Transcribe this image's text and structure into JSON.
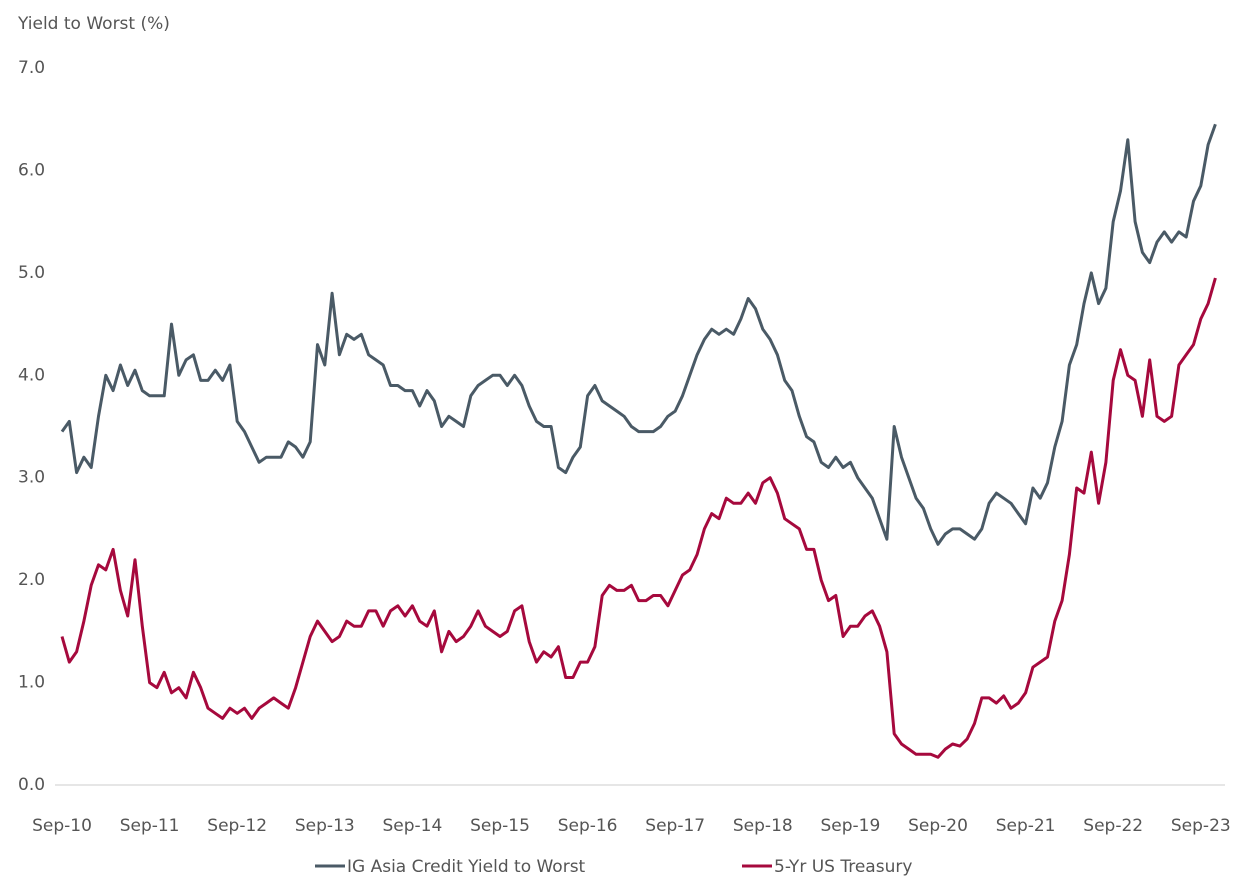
{
  "chart_data": {
    "type": "line",
    "y_label": "Yield to Worst (%)",
    "categories": [
      "Sep-10",
      null,
      null,
      null,
      null,
      null,
      null,
      null,
      null,
      null,
      null,
      null,
      "Sep-11",
      null,
      null,
      null,
      null,
      null,
      null,
      null,
      null,
      null,
      null,
      null,
      "Sep-12",
      null,
      null,
      null,
      null,
      null,
      null,
      null,
      null,
      null,
      null,
      null,
      "Sep-13",
      null,
      null,
      null,
      null,
      null,
      null,
      null,
      null,
      null,
      null,
      null,
      "Sep-14",
      null,
      null,
      null,
      null,
      null,
      null,
      null,
      null,
      null,
      null,
      null,
      "Sep-15",
      null,
      null,
      null,
      null,
      null,
      null,
      null,
      null,
      null,
      null,
      null,
      "Sep-16",
      null,
      null,
      null,
      null,
      null,
      null,
      null,
      null,
      null,
      null,
      null,
      "Sep-17",
      null,
      null,
      null,
      null,
      null,
      null,
      null,
      null,
      null,
      null,
      null,
      "Sep-18",
      null,
      null,
      null,
      null,
      null,
      null,
      null,
      null,
      null,
      null,
      null,
      "Sep-19",
      null,
      null,
      null,
      null,
      null,
      null,
      null,
      null,
      null,
      null,
      null,
      "Sep-20",
      null,
      null,
      null,
      null,
      null,
      null,
      null,
      null,
      null,
      null,
      null,
      "Sep-21",
      null,
      null,
      null,
      null,
      null,
      null,
      null,
      null,
      null,
      null,
      null,
      "Sep-22",
      null,
      null,
      null,
      null,
      null,
      null,
      null,
      null,
      null,
      null,
      null,
      "Sep-23",
      null,
      null
    ],
    "series": [
      {
        "name": "IG Asia Credit Yield to Worst",
        "color": "#4a5a66",
        "values": [
          3.45,
          3.55,
          3.05,
          3.2,
          3.1,
          3.6,
          4.0,
          3.85,
          4.1,
          3.9,
          4.05,
          3.85,
          3.8,
          3.8,
          3.8,
          4.5,
          4.0,
          4.15,
          4.2,
          3.95,
          3.95,
          4.05,
          3.95,
          4.1,
          3.55,
          3.45,
          3.3,
          3.15,
          3.2,
          3.2,
          3.2,
          3.35,
          3.3,
          3.2,
          3.35,
          4.3,
          4.1,
          4.8,
          4.2,
          4.4,
          4.35,
          4.4,
          4.2,
          4.15,
          4.1,
          3.9,
          3.9,
          3.85,
          3.85,
          3.7,
          3.85,
          3.75,
          3.5,
          3.6,
          3.55,
          3.5,
          3.8,
          3.9,
          3.95,
          4.0,
          4.0,
          3.9,
          4.0,
          3.9,
          3.7,
          3.55,
          3.5,
          3.5,
          3.1,
          3.05,
          3.2,
          3.3,
          3.8,
          3.9,
          3.75,
          3.7,
          3.65,
          3.6,
          3.5,
          3.45,
          3.45,
          3.45,
          3.5,
          3.6,
          3.65,
          3.8,
          4.0,
          4.2,
          4.35,
          4.45,
          4.4,
          4.45,
          4.4,
          4.55,
          4.75,
          4.65,
          4.45,
          4.35,
          4.2,
          3.95,
          3.85,
          3.6,
          3.4,
          3.35,
          3.15,
          3.1,
          3.2,
          3.1,
          3.15,
          3.0,
          2.9,
          2.8,
          2.6,
          2.4,
          3.5,
          3.2,
          3.0,
          2.8,
          2.7,
          2.5,
          2.35,
          2.45,
          2.5,
          2.5,
          2.45,
          2.4,
          2.5,
          2.75,
          2.85,
          2.8,
          2.75,
          2.65,
          2.55,
          2.9,
          2.8,
          2.95,
          3.3,
          3.55,
          4.1,
          4.3,
          4.7,
          5.0,
          4.7,
          4.85,
          5.5,
          5.8,
          6.3,
          5.5,
          5.2,
          5.1,
          5.3,
          5.4,
          5.3,
          5.4,
          5.35,
          5.7,
          5.85,
          6.25,
          6.45
        ]
      },
      {
        "name": "5-Yr US Treasury",
        "color": "#a6093d",
        "values": [
          1.45,
          1.2,
          1.3,
          1.6,
          1.95,
          2.15,
          2.1,
          2.3,
          1.9,
          1.65,
          2.2,
          1.55,
          1.0,
          0.95,
          1.1,
          0.9,
          0.95,
          0.85,
          1.1,
          0.95,
          0.75,
          0.7,
          0.65,
          0.75,
          0.7,
          0.75,
          0.65,
          0.75,
          0.8,
          0.85,
          0.8,
          0.75,
          0.95,
          1.2,
          1.45,
          1.6,
          1.5,
          1.4,
          1.45,
          1.6,
          1.55,
          1.55,
          1.7,
          1.7,
          1.55,
          1.7,
          1.75,
          1.65,
          1.75,
          1.6,
          1.55,
          1.7,
          1.3,
          1.5,
          1.4,
          1.45,
          1.55,
          1.7,
          1.55,
          1.5,
          1.45,
          1.5,
          1.7,
          1.75,
          1.4,
          1.2,
          1.3,
          1.25,
          1.35,
          1.05,
          1.05,
          1.2,
          1.2,
          1.35,
          1.85,
          1.95,
          1.9,
          1.9,
          1.95,
          1.8,
          1.8,
          1.85,
          1.85,
          1.75,
          1.9,
          2.05,
          2.1,
          2.25,
          2.5,
          2.65,
          2.6,
          2.8,
          2.75,
          2.75,
          2.85,
          2.75,
          2.95,
          3.0,
          2.85,
          2.6,
          2.55,
          2.5,
          2.3,
          2.3,
          2.0,
          1.8,
          1.85,
          1.45,
          1.55,
          1.55,
          1.65,
          1.7,
          1.55,
          1.3,
          0.5,
          0.4,
          0.35,
          0.3,
          0.3,
          0.3,
          0.27,
          0.35,
          0.4,
          0.38,
          0.45,
          0.6,
          0.85,
          0.85,
          0.8,
          0.87,
          0.75,
          0.8,
          0.9,
          1.15,
          1.2,
          1.25,
          1.6,
          1.8,
          2.25,
          2.9,
          2.85,
          3.25,
          2.75,
          3.15,
          3.95,
          4.25,
          4.0,
          3.95,
          3.6,
          4.15,
          3.6,
          3.55,
          3.6,
          4.1,
          4.2,
          4.3,
          4.55,
          4.7,
          4.95
        ]
      }
    ],
    "ylim": [
      0,
      7
    ],
    "yticks": [
      {
        "value": 0,
        "label": "0.0"
      },
      {
        "value": 1,
        "label": "1.0"
      },
      {
        "value": 2,
        "label": "2.0"
      },
      {
        "value": 3,
        "label": "3.0"
      },
      {
        "value": 4,
        "label": "4.0"
      },
      {
        "value": 5,
        "label": "5.0"
      },
      {
        "value": 6,
        "label": "6.0"
      },
      {
        "value": 7,
        "label": "7.0"
      }
    ],
    "grid": false,
    "legend": "bottom"
  }
}
